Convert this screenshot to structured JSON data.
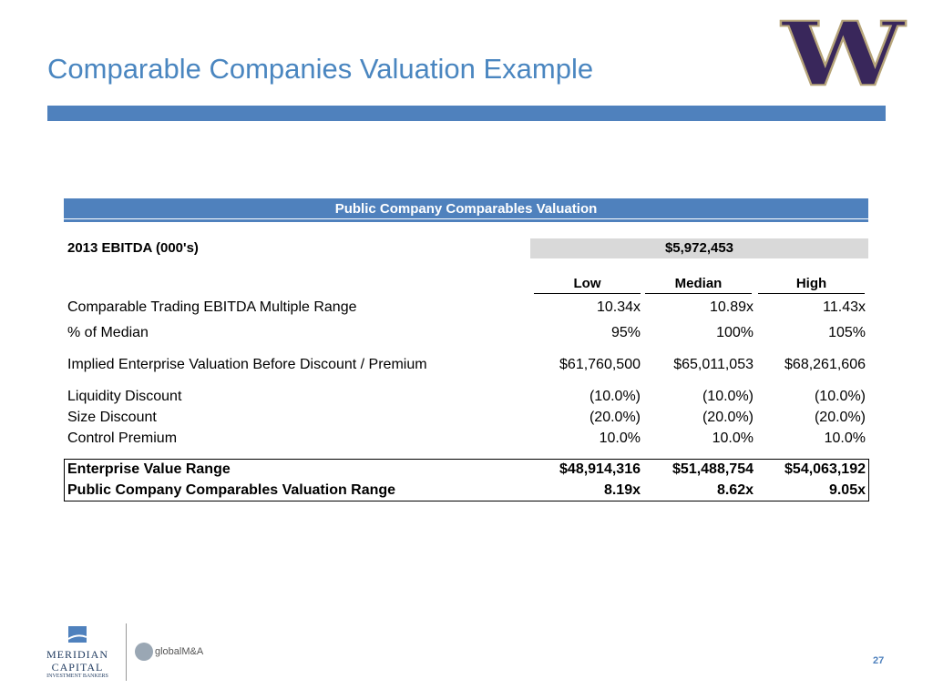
{
  "header": {
    "title": "Comparable Companies Valuation Example",
    "logo": "W"
  },
  "table": {
    "title": "Public Company Comparables Valuation",
    "ebitda": {
      "label": "2013 EBITDA (000's)",
      "value": "$5,972,453"
    },
    "columns": [
      "Low",
      "Median",
      "High"
    ],
    "rows": [
      [
        "Comparable Trading EBITDA Multiple Range",
        "10.34x",
        "10.89x",
        "11.43x"
      ],
      [
        "% of Median",
        "95%",
        "100%",
        "105%"
      ],
      [
        "Implied Enterprise Valuation Before Discount / Premium",
        "$61,760,500",
        "$65,011,053",
        "$68,261,606"
      ],
      [
        "Liquidity Discount",
        "(10.0%)",
        "(10.0%)",
        "(10.0%)"
      ],
      [
        "Size Discount",
        "(20.0%)",
        "(20.0%)",
        "(20.0%)"
      ],
      [
        "Control Premium",
        "10.0%",
        "10.0%",
        "10.0%"
      ]
    ],
    "totals": [
      [
        "Enterprise Value Range",
        "$48,914,316",
        "$51,488,754",
        "$54,063,192"
      ],
      [
        "Public Company Comparables Valuation Range",
        "8.19x",
        "8.62x",
        "9.05x"
      ]
    ]
  },
  "footer": {
    "meridian": [
      "MERIDIAN",
      "CAPITAL",
      "INVESTMENT BANKERS"
    ],
    "global": "globalM&A",
    "page": "27"
  }
}
